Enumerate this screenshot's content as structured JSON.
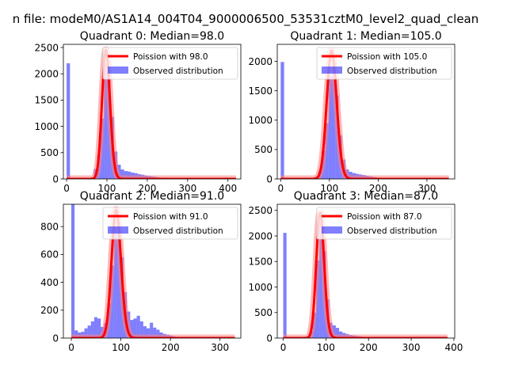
{
  "suptitle": "n file: modeM0/AS1A14_004T04_9000006500_53531cztM0_level2_quad_clean",
  "colors": {
    "hist": "#0000ff",
    "hist_opacity": 0.5,
    "fit_line": "#ff0000",
    "fit_halo": "#ff8080",
    "axis": "#000000",
    "background": "#ffffff"
  },
  "chart_data": [
    {
      "type": "bar",
      "title": "Quadrant 0: Median=98.0",
      "legend": [
        "Poission with 98.0",
        "Observed distribution"
      ],
      "legend_position": "top-right",
      "xlim": [
        -8,
        432
      ],
      "ylim": [
        0,
        2560
      ],
      "xticks": [
        0,
        100,
        200,
        300,
        400
      ],
      "yticks": [
        0,
        500,
        1000,
        1500,
        2000,
        2500
      ],
      "fit": {
        "lambda": 98.0,
        "peak": 2450,
        "xmax": 420
      },
      "histogram": [
        {
          "x": 0,
          "w": 8.4,
          "y": 2200
        },
        {
          "x": 8.4,
          "w": 8.4,
          "y": 5
        },
        {
          "x": 16.8,
          "w": 8.4,
          "y": 5
        },
        {
          "x": 25.2,
          "w": 8.4,
          "y": 8
        },
        {
          "x": 33.6,
          "w": 8.4,
          "y": 10
        },
        {
          "x": 42.0,
          "w": 8.4,
          "y": 12
        },
        {
          "x": 50.4,
          "w": 8.4,
          "y": 18
        },
        {
          "x": 58.8,
          "w": 8.4,
          "y": 30
        },
        {
          "x": 67.2,
          "w": 8.4,
          "y": 190
        },
        {
          "x": 75.6,
          "w": 8.4,
          "y": 460
        },
        {
          "x": 84.0,
          "w": 8.4,
          "y": 1150
        },
        {
          "x": 92.4,
          "w": 8.4,
          "y": 2180
        },
        {
          "x": 100.8,
          "w": 8.4,
          "y": 2100
        },
        {
          "x": 109.2,
          "w": 8.4,
          "y": 1180
        },
        {
          "x": 117.6,
          "w": 8.4,
          "y": 520
        },
        {
          "x": 126.0,
          "w": 8.4,
          "y": 270
        },
        {
          "x": 134.4,
          "w": 8.4,
          "y": 180
        },
        {
          "x": 142.8,
          "w": 8.4,
          "y": 150
        },
        {
          "x": 151.2,
          "w": 8.4,
          "y": 140
        },
        {
          "x": 159.6,
          "w": 8.4,
          "y": 120
        },
        {
          "x": 168.0,
          "w": 8.4,
          "y": 110
        },
        {
          "x": 176.4,
          "w": 8.4,
          "y": 90
        },
        {
          "x": 184.8,
          "w": 8.4,
          "y": 80
        },
        {
          "x": 193.2,
          "w": 8.4,
          "y": 65
        },
        {
          "x": 201.6,
          "w": 8.4,
          "y": 55
        },
        {
          "x": 210.0,
          "w": 8.4,
          "y": 45
        },
        {
          "x": 218.4,
          "w": 8.4,
          "y": 35
        },
        {
          "x": 226.8,
          "w": 8.4,
          "y": 25
        },
        {
          "x": 235.2,
          "w": 8.4,
          "y": 18
        },
        {
          "x": 243.6,
          "w": 8.4,
          "y": 12
        },
        {
          "x": 252.0,
          "w": 8.4,
          "y": 10
        },
        {
          "x": 260.4,
          "w": 8.4,
          "y": 8
        },
        {
          "x": 268.8,
          "w": 8.4,
          "y": 6
        },
        {
          "x": 277.2,
          "w": 8.4,
          "y": 5
        },
        {
          "x": 285.6,
          "w": 8.4,
          "y": 4
        },
        {
          "x": 294.0,
          "w": 8.4,
          "y": 3
        }
      ]
    },
    {
      "type": "bar",
      "title": "Quadrant 1: Median=105.0",
      "legend": [
        "Poission with 105.0",
        "Observed distribution"
      ],
      "legend_position": "top-right",
      "xlim": [
        -7,
        357
      ],
      "ylim": [
        0,
        2290
      ],
      "xticks": [
        0,
        100,
        200,
        300
      ],
      "yticks": [
        0,
        500,
        1000,
        1500,
        2000
      ],
      "fit": {
        "lambda": 105.0,
        "peak": 2180,
        "xmax": 345
      },
      "histogram": [
        {
          "x": 0,
          "w": 7,
          "y": 1990
        },
        {
          "x": 7,
          "w": 7,
          "y": 5
        },
        {
          "x": 14,
          "w": 7,
          "y": 5
        },
        {
          "x": 21,
          "w": 7,
          "y": 6
        },
        {
          "x": 28,
          "w": 7,
          "y": 6
        },
        {
          "x": 35,
          "w": 7,
          "y": 7
        },
        {
          "x": 42,
          "w": 7,
          "y": 8
        },
        {
          "x": 49,
          "w": 7,
          "y": 10
        },
        {
          "x": 56,
          "w": 7,
          "y": 12
        },
        {
          "x": 63,
          "w": 7,
          "y": 15
        },
        {
          "x": 70,
          "w": 7,
          "y": 35
        },
        {
          "x": 77,
          "w": 7,
          "y": 130
        },
        {
          "x": 84,
          "w": 7,
          "y": 480
        },
        {
          "x": 91,
          "w": 7,
          "y": 950
        },
        {
          "x": 98,
          "w": 7,
          "y": 1750
        },
        {
          "x": 105,
          "w": 7,
          "y": 1900
        },
        {
          "x": 112,
          "w": 7,
          "y": 1420
        },
        {
          "x": 119,
          "w": 7,
          "y": 740
        },
        {
          "x": 126,
          "w": 7,
          "y": 330
        },
        {
          "x": 133,
          "w": 7,
          "y": 160
        },
        {
          "x": 140,
          "w": 7,
          "y": 120
        },
        {
          "x": 147,
          "w": 7,
          "y": 100
        },
        {
          "x": 154,
          "w": 7,
          "y": 85
        },
        {
          "x": 161,
          "w": 7,
          "y": 75
        },
        {
          "x": 168,
          "w": 7,
          "y": 65
        },
        {
          "x": 175,
          "w": 7,
          "y": 55
        },
        {
          "x": 182,
          "w": 7,
          "y": 40
        },
        {
          "x": 189,
          "w": 7,
          "y": 30
        },
        {
          "x": 196,
          "w": 7,
          "y": 22
        },
        {
          "x": 203,
          "w": 7,
          "y": 15
        },
        {
          "x": 210,
          "w": 7,
          "y": 10
        },
        {
          "x": 217,
          "w": 7,
          "y": 7
        },
        {
          "x": 224,
          "w": 7,
          "y": 5
        }
      ]
    },
    {
      "type": "bar",
      "title": "Quadrant 2: Median=91.0",
      "legend": [
        "Poission with 91.0",
        "Observed distribution"
      ],
      "legend_position": "top-right",
      "xlim": [
        -16,
        342
      ],
      "ylim": [
        0,
        960
      ],
      "xticks": [
        0,
        100,
        200,
        300
      ],
      "yticks": [
        0,
        200,
        400,
        600,
        800
      ],
      "fit": {
        "lambda": 91.0,
        "peak": 920,
        "xmax": 330
      },
      "histogram": [
        {
          "x": 0,
          "w": 6.6,
          "y": 960
        },
        {
          "x": 6.6,
          "w": 6.6,
          "y": 55
        },
        {
          "x": 13.2,
          "w": 6.6,
          "y": 40
        },
        {
          "x": 19.8,
          "w": 6.6,
          "y": 45
        },
        {
          "x": 26.4,
          "w": 6.6,
          "y": 70
        },
        {
          "x": 33.0,
          "w": 6.6,
          "y": 90
        },
        {
          "x": 39.6,
          "w": 6.6,
          "y": 120
        },
        {
          "x": 46.2,
          "w": 6.6,
          "y": 150
        },
        {
          "x": 52.8,
          "w": 6.6,
          "y": 140
        },
        {
          "x": 59.4,
          "w": 6.6,
          "y": 80
        },
        {
          "x": 66.0,
          "w": 6.6,
          "y": 110
        },
        {
          "x": 72.6,
          "w": 6.6,
          "y": 250
        },
        {
          "x": 79.2,
          "w": 6.6,
          "y": 520
        },
        {
          "x": 85.8,
          "w": 6.6,
          "y": 800
        },
        {
          "x": 92.4,
          "w": 6.6,
          "y": 780
        },
        {
          "x": 99.0,
          "w": 6.6,
          "y": 580
        },
        {
          "x": 105.6,
          "w": 6.6,
          "y": 330
        },
        {
          "x": 112.2,
          "w": 6.6,
          "y": 190
        },
        {
          "x": 118.8,
          "w": 6.6,
          "y": 130
        },
        {
          "x": 125.4,
          "w": 6.6,
          "y": 140
        },
        {
          "x": 132.0,
          "w": 6.6,
          "y": 160
        },
        {
          "x": 138.6,
          "w": 6.6,
          "y": 120
        },
        {
          "x": 145.2,
          "w": 6.6,
          "y": 85
        },
        {
          "x": 151.8,
          "w": 6.6,
          "y": 70
        },
        {
          "x": 158.4,
          "w": 6.6,
          "y": 110
        },
        {
          "x": 165.0,
          "w": 6.6,
          "y": 75
        },
        {
          "x": 171.6,
          "w": 6.6,
          "y": 60
        },
        {
          "x": 178.2,
          "w": 6.6,
          "y": 40
        },
        {
          "x": 184.8,
          "w": 6.6,
          "y": 30
        },
        {
          "x": 191.4,
          "w": 6.6,
          "y": 25
        },
        {
          "x": 198.0,
          "w": 6.6,
          "y": 18
        },
        {
          "x": 204.6,
          "w": 6.6,
          "y": 12
        },
        {
          "x": 211.2,
          "w": 6.6,
          "y": 8
        },
        {
          "x": 217.8,
          "w": 6.6,
          "y": 5
        },
        {
          "x": 224.4,
          "w": 6.6,
          "y": 4
        },
        {
          "x": 231.0,
          "w": 6.6,
          "y": 3
        }
      ]
    },
    {
      "type": "bar",
      "title": "Quadrant 3: Median=87.0",
      "legend": [
        "Poission with 87.0",
        "Observed distribution"
      ],
      "legend_position": "top-right",
      "xlim": [
        -14,
        402
      ],
      "ylim": [
        0,
        2620
      ],
      "xticks": [
        0,
        100,
        200,
        300,
        400
      ],
      "yticks": [
        0,
        500,
        1000,
        1500,
        2000,
        2500
      ],
      "fit": {
        "lambda": 87.0,
        "peak": 2450,
        "xmax": 385
      },
      "histogram": [
        {
          "x": 0,
          "w": 7.7,
          "y": 2060
        },
        {
          "x": 7.7,
          "w": 7.7,
          "y": 5
        },
        {
          "x": 15.4,
          "w": 7.7,
          "y": 5
        },
        {
          "x": 23.1,
          "w": 7.7,
          "y": 6
        },
        {
          "x": 30.8,
          "w": 7.7,
          "y": 8
        },
        {
          "x": 38.5,
          "w": 7.7,
          "y": 10
        },
        {
          "x": 46.2,
          "w": 7.7,
          "y": 15
        },
        {
          "x": 53.9,
          "w": 7.7,
          "y": 30
        },
        {
          "x": 61.6,
          "w": 7.7,
          "y": 140
        },
        {
          "x": 69.3,
          "w": 7.7,
          "y": 500
        },
        {
          "x": 77.0,
          "w": 7.7,
          "y": 1520
        },
        {
          "x": 84.7,
          "w": 7.7,
          "y": 2250
        },
        {
          "x": 92.4,
          "w": 7.7,
          "y": 1700
        },
        {
          "x": 100.1,
          "w": 7.7,
          "y": 760
        },
        {
          "x": 107.8,
          "w": 7.7,
          "y": 300
        },
        {
          "x": 115.5,
          "w": 7.7,
          "y": 250
        },
        {
          "x": 123.2,
          "w": 7.7,
          "y": 200
        },
        {
          "x": 130.9,
          "w": 7.7,
          "y": 130
        },
        {
          "x": 138.6,
          "w": 7.7,
          "y": 100
        },
        {
          "x": 146.3,
          "w": 7.7,
          "y": 80
        },
        {
          "x": 154.0,
          "w": 7.7,
          "y": 60
        },
        {
          "x": 161.7,
          "w": 7.7,
          "y": 50
        },
        {
          "x": 169.4,
          "w": 7.7,
          "y": 40
        },
        {
          "x": 177.1,
          "w": 7.7,
          "y": 30
        },
        {
          "x": 184.8,
          "w": 7.7,
          "y": 25
        },
        {
          "x": 192.5,
          "w": 7.7,
          "y": 20
        },
        {
          "x": 200.2,
          "w": 7.7,
          "y": 15
        },
        {
          "x": 207.9,
          "w": 7.7,
          "y": 10
        },
        {
          "x": 215.6,
          "w": 7.7,
          "y": 8
        },
        {
          "x": 223.3,
          "w": 7.7,
          "y": 6
        },
        {
          "x": 231.0,
          "w": 7.7,
          "y": 5
        },
        {
          "x": 238.7,
          "w": 7.7,
          "y": 4
        },
        {
          "x": 246.4,
          "w": 7.7,
          "y": 3
        }
      ]
    }
  ]
}
